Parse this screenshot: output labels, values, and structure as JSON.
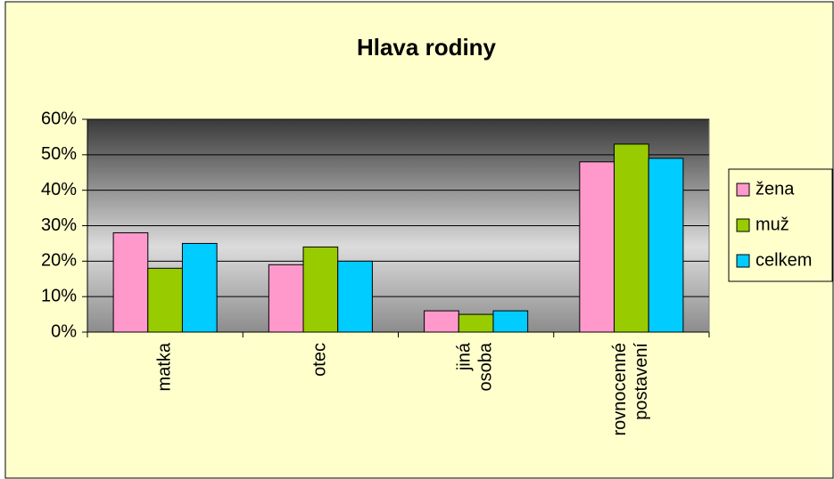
{
  "chart_data": {
    "type": "bar",
    "title": "Hlava rodiny",
    "categories": [
      "matka",
      "otec",
      "jiná osoba",
      "rovnocenné postavení"
    ],
    "series": [
      {
        "name": "žena",
        "color": "#ff99cc",
        "values": [
          28,
          19,
          6,
          48
        ]
      },
      {
        "name": "muž",
        "color": "#99cc00",
        "values": [
          18,
          24,
          5,
          53
        ]
      },
      {
        "name": "celkem",
        "color": "#00ccff",
        "values": [
          25,
          20,
          6,
          49
        ]
      }
    ],
    "ylim": [
      0,
      60
    ],
    "yticks": [
      {
        "value": 0,
        "label": "0%"
      },
      {
        "value": 10,
        "label": "10%"
      },
      {
        "value": 20,
        "label": "20%"
      },
      {
        "value": 30,
        "label": "30%"
      },
      {
        "value": 40,
        "label": "40%"
      },
      {
        "value": 50,
        "label": "50%"
      },
      {
        "value": 60,
        "label": "60%"
      }
    ],
    "grid": true,
    "legend": "right"
  }
}
